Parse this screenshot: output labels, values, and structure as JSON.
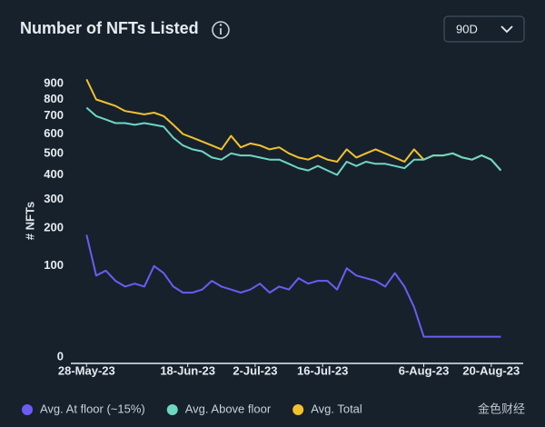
{
  "chart_data": {
    "type": "line",
    "title": "Number of NFTs Listed",
    "range_selector": "90D",
    "y_label": "# NFTs",
    "y_scale": "sqrt",
    "x": [
      "28-May-23",
      "30-May-23",
      "1-Jun-23",
      "3-Jun-23",
      "5-Jun-23",
      "7-Jun-23",
      "9-Jun-23",
      "11-Jun-23",
      "13-Jun-23",
      "15-Jun-23",
      "17-Jun-23",
      "19-Jun-23",
      "21-Jun-23",
      "23-Jun-23",
      "25-Jun-23",
      "27-Jun-23",
      "29-Jun-23",
      "1-Jul-23",
      "3-Jul-23",
      "5-Jul-23",
      "7-Jul-23",
      "9-Jul-23",
      "11-Jul-23",
      "13-Jul-23",
      "15-Jul-23",
      "17-Jul-23",
      "19-Jul-23",
      "21-Jul-23",
      "23-Jul-23",
      "25-Jul-23",
      "27-Jul-23",
      "29-Jul-23",
      "31-Jul-23",
      "2-Aug-23",
      "4-Aug-23",
      "6-Aug-23",
      "8-Aug-23",
      "10-Aug-23",
      "12-Aug-23",
      "14-Aug-23",
      "16-Aug-23",
      "18-Aug-23",
      "20-Aug-23",
      "22-Aug-23"
    ],
    "xlim": [
      "27-May-23",
      "24-Aug-23"
    ],
    "xticks": [
      "28-May-23",
      "18-Jun-23",
      "2-Jul-23",
      "16-Jul-23",
      "6-Aug-23",
      "20-Aug-23"
    ],
    "ylim": [
      0,
      1000
    ],
    "yticks": [
      0,
      100,
      200,
      300,
      400,
      500,
      600,
      700,
      800,
      900
    ],
    "series": [
      {
        "name": "Avg. Total",
        "color": "#f2c12e",
        "values": [
          930,
          800,
          780,
          760,
          730,
          720,
          710,
          720,
          700,
          650,
          600,
          580,
          560,
          540,
          520,
          590,
          530,
          550,
          540,
          520,
          530,
          500,
          480,
          470,
          490,
          470,
          460,
          520,
          480,
          500,
          520,
          500,
          480,
          460,
          520,
          470,
          490,
          490,
          500,
          480,
          470,
          490,
          470,
          420
        ]
      },
      {
        "name": "Avg. Above floor",
        "color": "#6fd6c4",
        "values": [
          750,
          700,
          680,
          660,
          660,
          650,
          660,
          650,
          640,
          580,
          540,
          520,
          510,
          480,
          470,
          500,
          490,
          490,
          480,
          470,
          470,
          450,
          430,
          420,
          440,
          420,
          400,
          460,
          440,
          460,
          450,
          450,
          440,
          430,
          470,
          470,
          490,
          490,
          500,
          480,
          470,
          490,
          470,
          420
        ]
      },
      {
        "name": "Avg. At floor (~15%)",
        "color": "#6c5cf2",
        "values": [
          180,
          80,
          90,
          70,
          60,
          65,
          60,
          100,
          85,
          60,
          50,
          50,
          55,
          70,
          60,
          55,
          50,
          55,
          65,
          50,
          60,
          55,
          75,
          65,
          70,
          70,
          55,
          95,
          80,
          75,
          70,
          60,
          85,
          60,
          30,
          5,
          5,
          5,
          5,
          5,
          5,
          5,
          5,
          5
        ]
      }
    ],
    "legend_order": [
      2,
      1,
      0
    ],
    "watermark": "金色财经"
  }
}
